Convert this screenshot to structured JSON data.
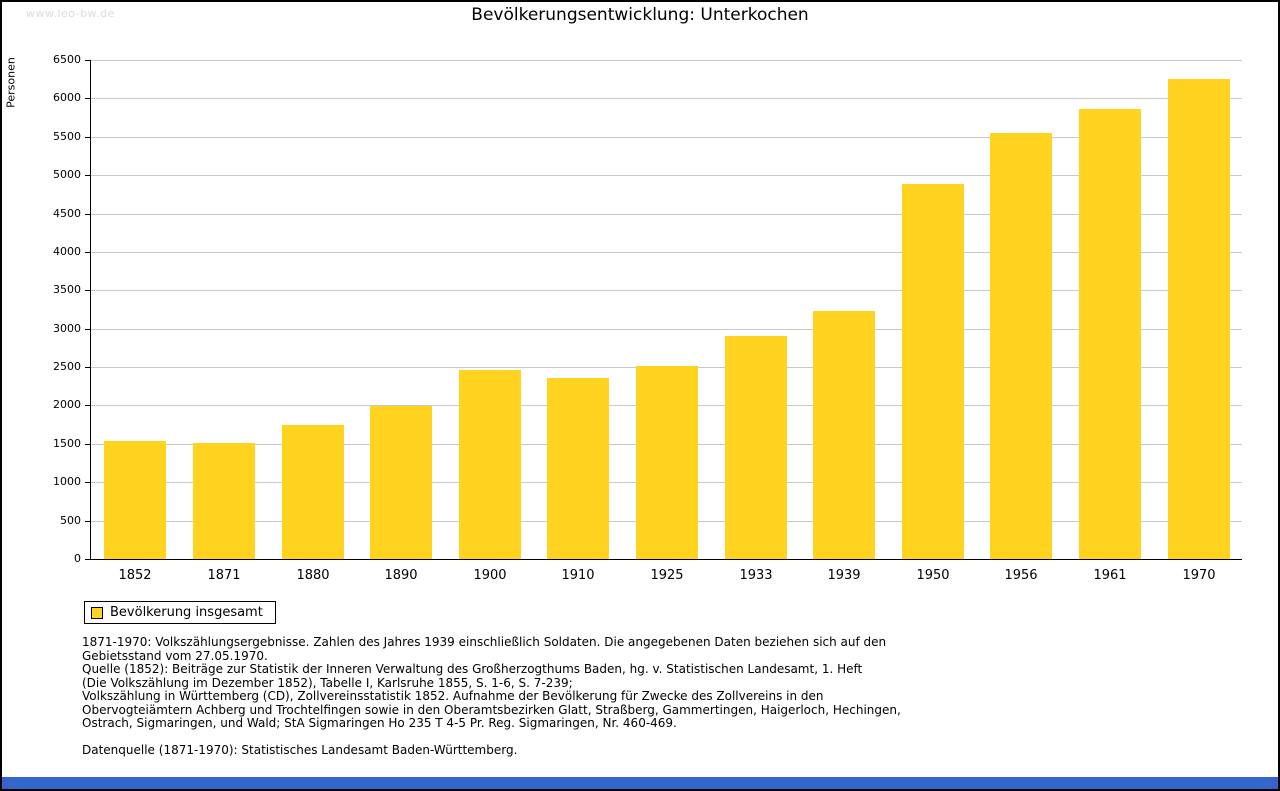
{
  "watermark": "www.leo-bw.de",
  "chart_data": {
    "type": "bar",
    "title": "Bevölkerungsentwicklung: Unterkochen",
    "xlabel": "",
    "ylabel": "Personen",
    "legend": "Bevölkerung insgesamt",
    "legend_position": "bottom-left",
    "grid": true,
    "ylim": [
      0,
      6500
    ],
    "ytick_step": 500,
    "categories": [
      "1852",
      "1871",
      "1880",
      "1890",
      "1900",
      "1910",
      "1925",
      "1933",
      "1939",
      "1950",
      "1956",
      "1961",
      "1970"
    ],
    "values": [
      1540,
      1510,
      1740,
      1990,
      2460,
      2360,
      2510,
      2900,
      3230,
      4880,
      5550,
      5860,
      6250
    ]
  },
  "footer": {
    "lines": [
      "1871-1970: Volkszählungsergebnisse. Zahlen des Jahres 1939 einschließlich Soldaten. Die angegebenen Daten beziehen sich auf den",
      "Gebietsstand vom 27.05.1970.",
      "Quelle (1852): Beiträge zur Statistik der Inneren Verwaltung des Großherzogthums Baden, hg. v. Statistischen Landesamt, 1. Heft",
      "(Die Volkszählung im Dezember 1852), Tabelle I, Karlsruhe 1855, S. 1-6, S. 7-239;",
      "Volkszählung in Württemberg (CD), Zollvereinsstatistik 1852. Aufnahme der Bevölkerung für Zwecke des Zollvereins in den",
      "Obervogteiämtern Achberg und Trochtelfingen sowie in den Oberamtsbezirken Glatt, Straßberg, Gammertingen, Haigerloch, Hechingen,",
      "Ostrach, Sigmaringen, und Wald; StA Sigmaringen Ho 235 T 4-5 Pr. Reg. Sigmaringen, Nr. 460-469."
    ],
    "source_line": "Datenquelle (1871-1970): Statistisches Landesamt Baden-Württemberg."
  },
  "colors": {
    "bar": "#FFD320",
    "grid": "#C9C9C9",
    "axis": "#000000",
    "watermark": "#DCDCDC",
    "bottom_bar": "#3366CC",
    "frame_border": "#000000"
  }
}
